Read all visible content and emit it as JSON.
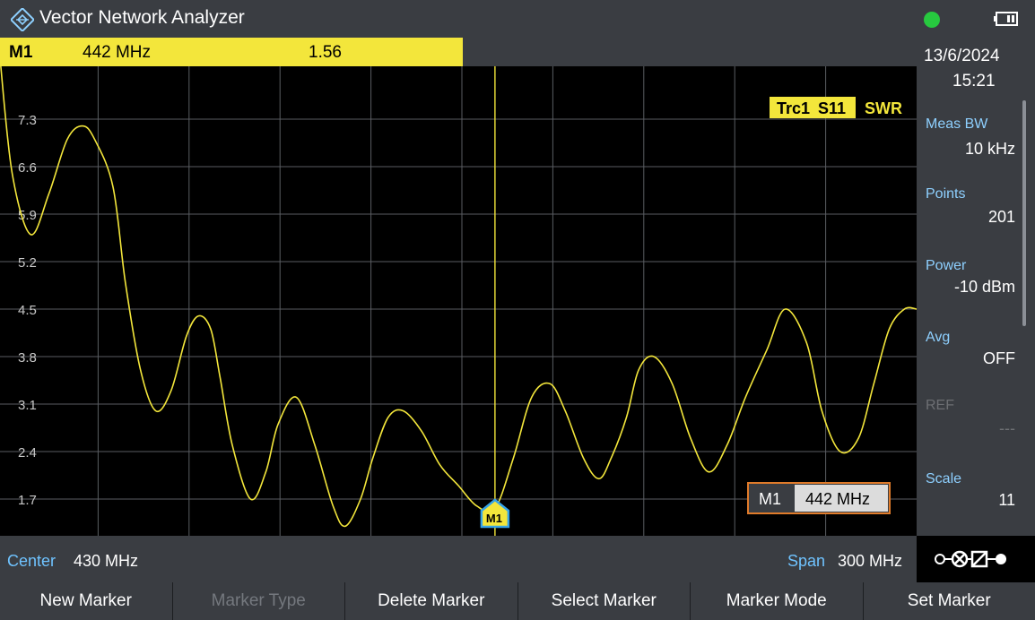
{
  "app": {
    "title": "Vector Network Analyzer"
  },
  "status": {
    "indicator_color": "#27c93f"
  },
  "marker_bar": {
    "name": "M1",
    "frequency": "442 MHz",
    "value": "1.56"
  },
  "side_panel": {
    "date": "13/6/2024",
    "time": "15:21",
    "meas_bw": {
      "label": "Meas BW",
      "value": "10 kHz"
    },
    "points": {
      "label": "Points",
      "value": "201"
    },
    "power": {
      "label": "Power",
      "value": "-10 dBm"
    },
    "avg": {
      "label": "Avg",
      "value": "OFF"
    },
    "ref": {
      "label": "REF",
      "value": "---"
    },
    "scale": {
      "label": "Scale",
      "value": "11"
    }
  },
  "trace": {
    "name": "Trc1",
    "param": "S11",
    "format": "SWR",
    "color": "#f3e63b"
  },
  "marker_box": {
    "name": "M1",
    "frequency": "442 MHz"
  },
  "marker_tag": "M1",
  "footer": {
    "center_label": "Center",
    "center_value": "430 MHz",
    "span_label": "Span",
    "span_value": "300 MHz"
  },
  "softkeys": [
    {
      "label": "New Marker",
      "enabled": true
    },
    {
      "label": "Marker Type",
      "enabled": false
    },
    {
      "label": "Delete Marker",
      "enabled": true
    },
    {
      "label": "Select Marker",
      "enabled": true
    },
    {
      "label": "Marker Mode",
      "enabled": true
    },
    {
      "label": "Set Marker",
      "enabled": true
    }
  ],
  "chart_data": {
    "type": "line",
    "y_tick_labels": [
      "7.3",
      "6.6",
      "5.9",
      "5.2",
      "4.5",
      "3.8",
      "3.1",
      "2.4",
      "1.7"
    ],
    "ylim": [
      1.0,
      8.0
    ],
    "xlim_mhz": [
      280,
      580
    ],
    "grid": true,
    "marker": {
      "x_mhz": 442,
      "y": 1.56
    },
    "series": [
      {
        "x_mhz": [
          280,
          284,
          290,
          296,
          302,
          307,
          311,
          317,
          321,
          326,
          331,
          336,
          341,
          345,
          349,
          352,
          356,
          362,
          367,
          371,
          377,
          383,
          389,
          393,
          398,
          402,
          407,
          412,
          418,
          424,
          430,
          436,
          442,
          448,
          454,
          460,
          465,
          471,
          476,
          480,
          485,
          489,
          494,
          500,
          506,
          512,
          518,
          524,
          531,
          537,
          544,
          549,
          555,
          561,
          566,
          571,
          576,
          580
        ],
        "y": [
          8.2,
          6.5,
          5.6,
          6.2,
          7.0,
          7.2,
          7.0,
          6.3,
          4.9,
          3.6,
          3.0,
          3.3,
          4.1,
          4.4,
          4.2,
          3.5,
          2.5,
          1.7,
          2.1,
          2.8,
          3.2,
          2.5,
          1.6,
          1.3,
          1.7,
          2.3,
          2.9,
          3.0,
          2.7,
          2.2,
          1.9,
          1.6,
          1.56,
          2.3,
          3.2,
          3.4,
          3.0,
          2.3,
          2.0,
          2.3,
          2.9,
          3.6,
          3.8,
          3.4,
          2.6,
          2.1,
          2.5,
          3.2,
          3.9,
          4.5,
          4.0,
          3.0,
          2.4,
          2.6,
          3.4,
          4.2,
          4.5,
          4.5
        ]
      }
    ]
  }
}
